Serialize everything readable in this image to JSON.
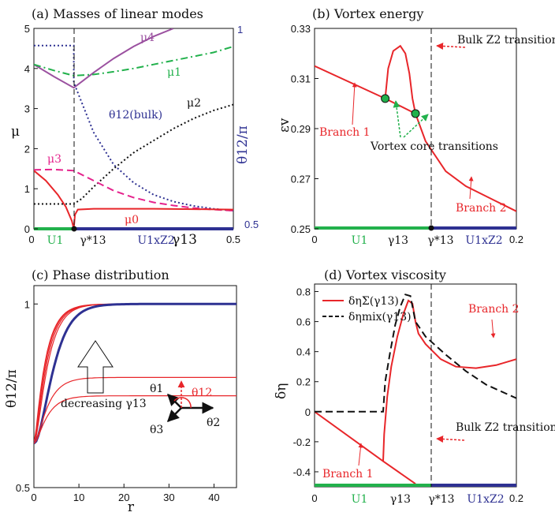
{
  "figure": {
    "panels": [
      {
        "id": "a",
        "title": "(a) Masses of linear modes"
      },
      {
        "id": "b",
        "title": "(b) Vortex energy"
      },
      {
        "id": "c",
        "title": "(c) Phase distribution"
      },
      {
        "id": "d",
        "title": "(d) Vortex viscosity"
      }
    ]
  },
  "colors": {
    "red": "#e8262a",
    "green": "#22b14c",
    "blue": "#2e3192",
    "purple": "#9b51a0",
    "magenta": "#e5228c",
    "navy": "#2e3192",
    "black": "#111111"
  },
  "chart_data": [
    {
      "id": "a",
      "type": "line",
      "title": "(a) Masses of linear modes",
      "xlabel": "γ13",
      "ylabel": "μ",
      "ylabel_right": "θ12/π",
      "xlim": [
        0,
        0.5
      ],
      "ylim": [
        0,
        5
      ],
      "ylim_right": [
        0.5,
        1
      ],
      "x_ticks": [
        "0",
        "0.5"
      ],
      "y_ticks": [
        "0",
        "1",
        "2",
        "3",
        "4",
        "5"
      ],
      "right_ticks": [
        "0.5",
        "1"
      ],
      "gamma_star": 0.1,
      "phase_labels": [
        "U1",
        "γ*13",
        "U1xZ2"
      ],
      "series": [
        {
          "name": "μ4",
          "color": "#9b51a0",
          "style": "solid",
          "x": [
            0,
            0.05,
            0.1,
            0.15,
            0.2,
            0.25,
            0.3,
            0.35
          ],
          "y": [
            4.1,
            3.8,
            3.52,
            3.9,
            4.25,
            4.55,
            4.8,
            5.0
          ]
        },
        {
          "name": "μ1",
          "color": "#22b14c",
          "style": "dashdot",
          "x": [
            0,
            0.05,
            0.1,
            0.15,
            0.2,
            0.25,
            0.3,
            0.35,
            0.4,
            0.45,
            0.5
          ],
          "y": [
            4.1,
            3.95,
            3.82,
            3.85,
            3.92,
            4.0,
            4.1,
            4.2,
            4.3,
            4.4,
            4.55
          ]
        },
        {
          "name": "θ12(bulk)",
          "color": "#2e3192",
          "style": "dotted",
          "x": [
            0,
            0.1,
            0.1,
            0.15,
            0.2,
            0.25,
            0.3,
            0.35,
            0.4,
            0.45,
            0.5
          ],
          "y": [
            4.57,
            4.57,
            3.65,
            2.4,
            1.6,
            1.15,
            0.85,
            0.68,
            0.57,
            0.5,
            0.45
          ]
        },
        {
          "name": "μ2",
          "color": "#111111",
          "style": "dotted",
          "x": [
            0,
            0.1,
            0.12,
            0.15,
            0.2,
            0.25,
            0.3,
            0.35,
            0.4,
            0.45,
            0.5
          ],
          "y": [
            0.62,
            0.62,
            0.75,
            1.05,
            1.5,
            1.9,
            2.2,
            2.5,
            2.75,
            2.95,
            3.1
          ]
        },
        {
          "name": "μ3",
          "color": "#e5228c",
          "style": "dashed",
          "x": [
            0,
            0.05,
            0.1,
            0.15,
            0.2,
            0.25,
            0.3,
            0.35,
            0.4,
            0.45,
            0.5
          ],
          "y": [
            1.47,
            1.48,
            1.45,
            1.2,
            0.95,
            0.78,
            0.66,
            0.58,
            0.52,
            0.48,
            0.45
          ]
        },
        {
          "name": "μ0",
          "color": "#e8262a",
          "style": "solid",
          "x": [
            0,
            0.03,
            0.06,
            0.08,
            0.095,
            0.1,
            0.103,
            0.11,
            0.15,
            0.2,
            0.3,
            0.4,
            0.5
          ],
          "y": [
            1.45,
            1.2,
            0.85,
            0.55,
            0.2,
            0,
            0.35,
            0.48,
            0.5,
            0.5,
            0.5,
            0.49,
            0.48
          ]
        }
      ],
      "labels": [
        "μ4",
        "μ1",
        "θ12(bulk)",
        "μ2",
        "μ3",
        "μ0"
      ]
    },
    {
      "id": "b",
      "type": "line",
      "title": "(b) Vortex energy",
      "xlabel": "γ13",
      "ylabel": "εv",
      "xlim": [
        0,
        0.2
      ],
      "ylim": [
        0.25,
        0.33
      ],
      "x_ticks": [
        "0",
        "0.2"
      ],
      "y_ticks": [
        "0.25",
        "0.27",
        "0.29",
        "0.31",
        "0.33"
      ],
      "gamma_star": 0.1,
      "gamma_13": 0.07,
      "phase_labels": [
        "U1",
        "γ13",
        "γ*13",
        "U1xZ2"
      ],
      "series": [
        {
          "name": "Branch 1",
          "color": "#e8262a",
          "x": [
            0,
            0.07,
            0.1
          ],
          "y": [
            0.315,
            0.302,
            0.296
          ]
        },
        {
          "name": "Branch 2",
          "color": "#e8262a",
          "x": [
            0.07,
            0.073,
            0.078,
            0.085,
            0.09,
            0.094,
            0.097,
            0.1,
            0.11,
            0.13,
            0.15,
            0.18,
            0.2
          ],
          "y": [
            0.302,
            0.314,
            0.321,
            0.323,
            0.32,
            0.312,
            0.302,
            0.296,
            0.285,
            0.273,
            0.267,
            0.261,
            0.257
          ]
        }
      ],
      "markers": [
        {
          "x": 0.07,
          "y": 0.302
        },
        {
          "x": 0.1,
          "y": 0.296
        }
      ],
      "annotations": [
        "Branch 1",
        "Branch 2",
        "Bulk Z2 transition",
        "Vortex core transitions"
      ]
    },
    {
      "id": "c",
      "type": "line",
      "title": "(c) Phase distribution",
      "xlabel": "r",
      "ylabel": "θ12/π",
      "xlim": [
        0,
        45
      ],
      "ylim": [
        0.5,
        1.05
      ],
      "x_ticks": [
        "0",
        "10",
        "20",
        "30",
        "40"
      ],
      "y_ticks": [
        "0.5",
        "1"
      ],
      "curves": [
        {
          "color": "#e8262a",
          "y0": 0.62,
          "yinf": 1.0,
          "rate": 0.95
        },
        {
          "color": "#e8262a",
          "y0": 0.62,
          "yinf": 1.0,
          "rate": 0.6
        },
        {
          "color": "#e8262a",
          "y0": 0.62,
          "yinf": 1.0,
          "rate": 0.38
        },
        {
          "color": "#e8262a",
          "y0": 0.62,
          "yinf": 1.0,
          "rate": 0.25
        },
        {
          "color": "#2e3192",
          "y0": 0.62,
          "yinf": 1.0,
          "rate": 0.07,
          "bold": true
        },
        {
          "color": "#e8262a",
          "y0": 0.62,
          "yinf": 0.8,
          "rate": 0.25
        },
        {
          "color": "#e8262a",
          "y0": 0.62,
          "yinf": 0.75,
          "rate": 0.3
        }
      ],
      "annotations": [
        "decreasing γ13"
      ],
      "inset_labels": [
        "θ1",
        "θ2",
        "θ3",
        "θ12"
      ]
    },
    {
      "id": "d",
      "type": "line",
      "title": "(d) Vortex viscosity",
      "xlabel": "γ13",
      "ylabel": "δη",
      "xlim": [
        0,
        0.2
      ],
      "ylim": [
        -0.5,
        0.85
      ],
      "x_ticks": [
        "0",
        "0.2"
      ],
      "y_ticks": [
        "-0.4",
        "-0.2",
        "0",
        "0.2",
        "0.4",
        "0.6",
        "0.8"
      ],
      "gamma_star": 0.1,
      "gamma_13": 0.068,
      "phase_labels": [
        "U1",
        "γ13",
        "γ*13",
        "U1xZ2"
      ],
      "legend": [
        "δηΣ(γ13)",
        "δηmix(γ13)"
      ],
      "series": [
        {
          "name": "δηΣ(γ13) Branch 1",
          "color": "#e8262a",
          "style": "solid",
          "x": [
            0,
            0.068,
            0.1
          ],
          "y": [
            0,
            -0.33,
            -0.48
          ]
        },
        {
          "name": "δηΣ(γ13) Branch 2",
          "color": "#e8262a",
          "style": "solid",
          "x": [
            0.068,
            0.069,
            0.072,
            0.076,
            0.082,
            0.088,
            0.093,
            0.097,
            0.1,
            0.103,
            0.11,
            0.125,
            0.14,
            0.16,
            0.18,
            0.2
          ],
          "y": [
            -0.33,
            -0.15,
            0.1,
            0.3,
            0.5,
            0.65,
            0.74,
            0.72,
            0.6,
            0.52,
            0.45,
            0.35,
            0.3,
            0.29,
            0.31,
            0.35
          ]
        },
        {
          "name": "δηmix(γ13)",
          "color": "#111111",
          "style": "dashed",
          "x": [
            0,
            0.068,
            0.07,
            0.075,
            0.08,
            0.085,
            0.09,
            0.095,
            0.1,
            0.11,
            0.13,
            0.15,
            0.17,
            0.19,
            0.2
          ],
          "y": [
            0,
            0,
            0.2,
            0.4,
            0.58,
            0.7,
            0.78,
            0.77,
            0.6,
            0.5,
            0.38,
            0.27,
            0.18,
            0.12,
            0.09
          ]
        }
      ],
      "annotations": [
        "Branch 1",
        "Branch 2",
        "Bulk Z2 transition"
      ]
    }
  ]
}
